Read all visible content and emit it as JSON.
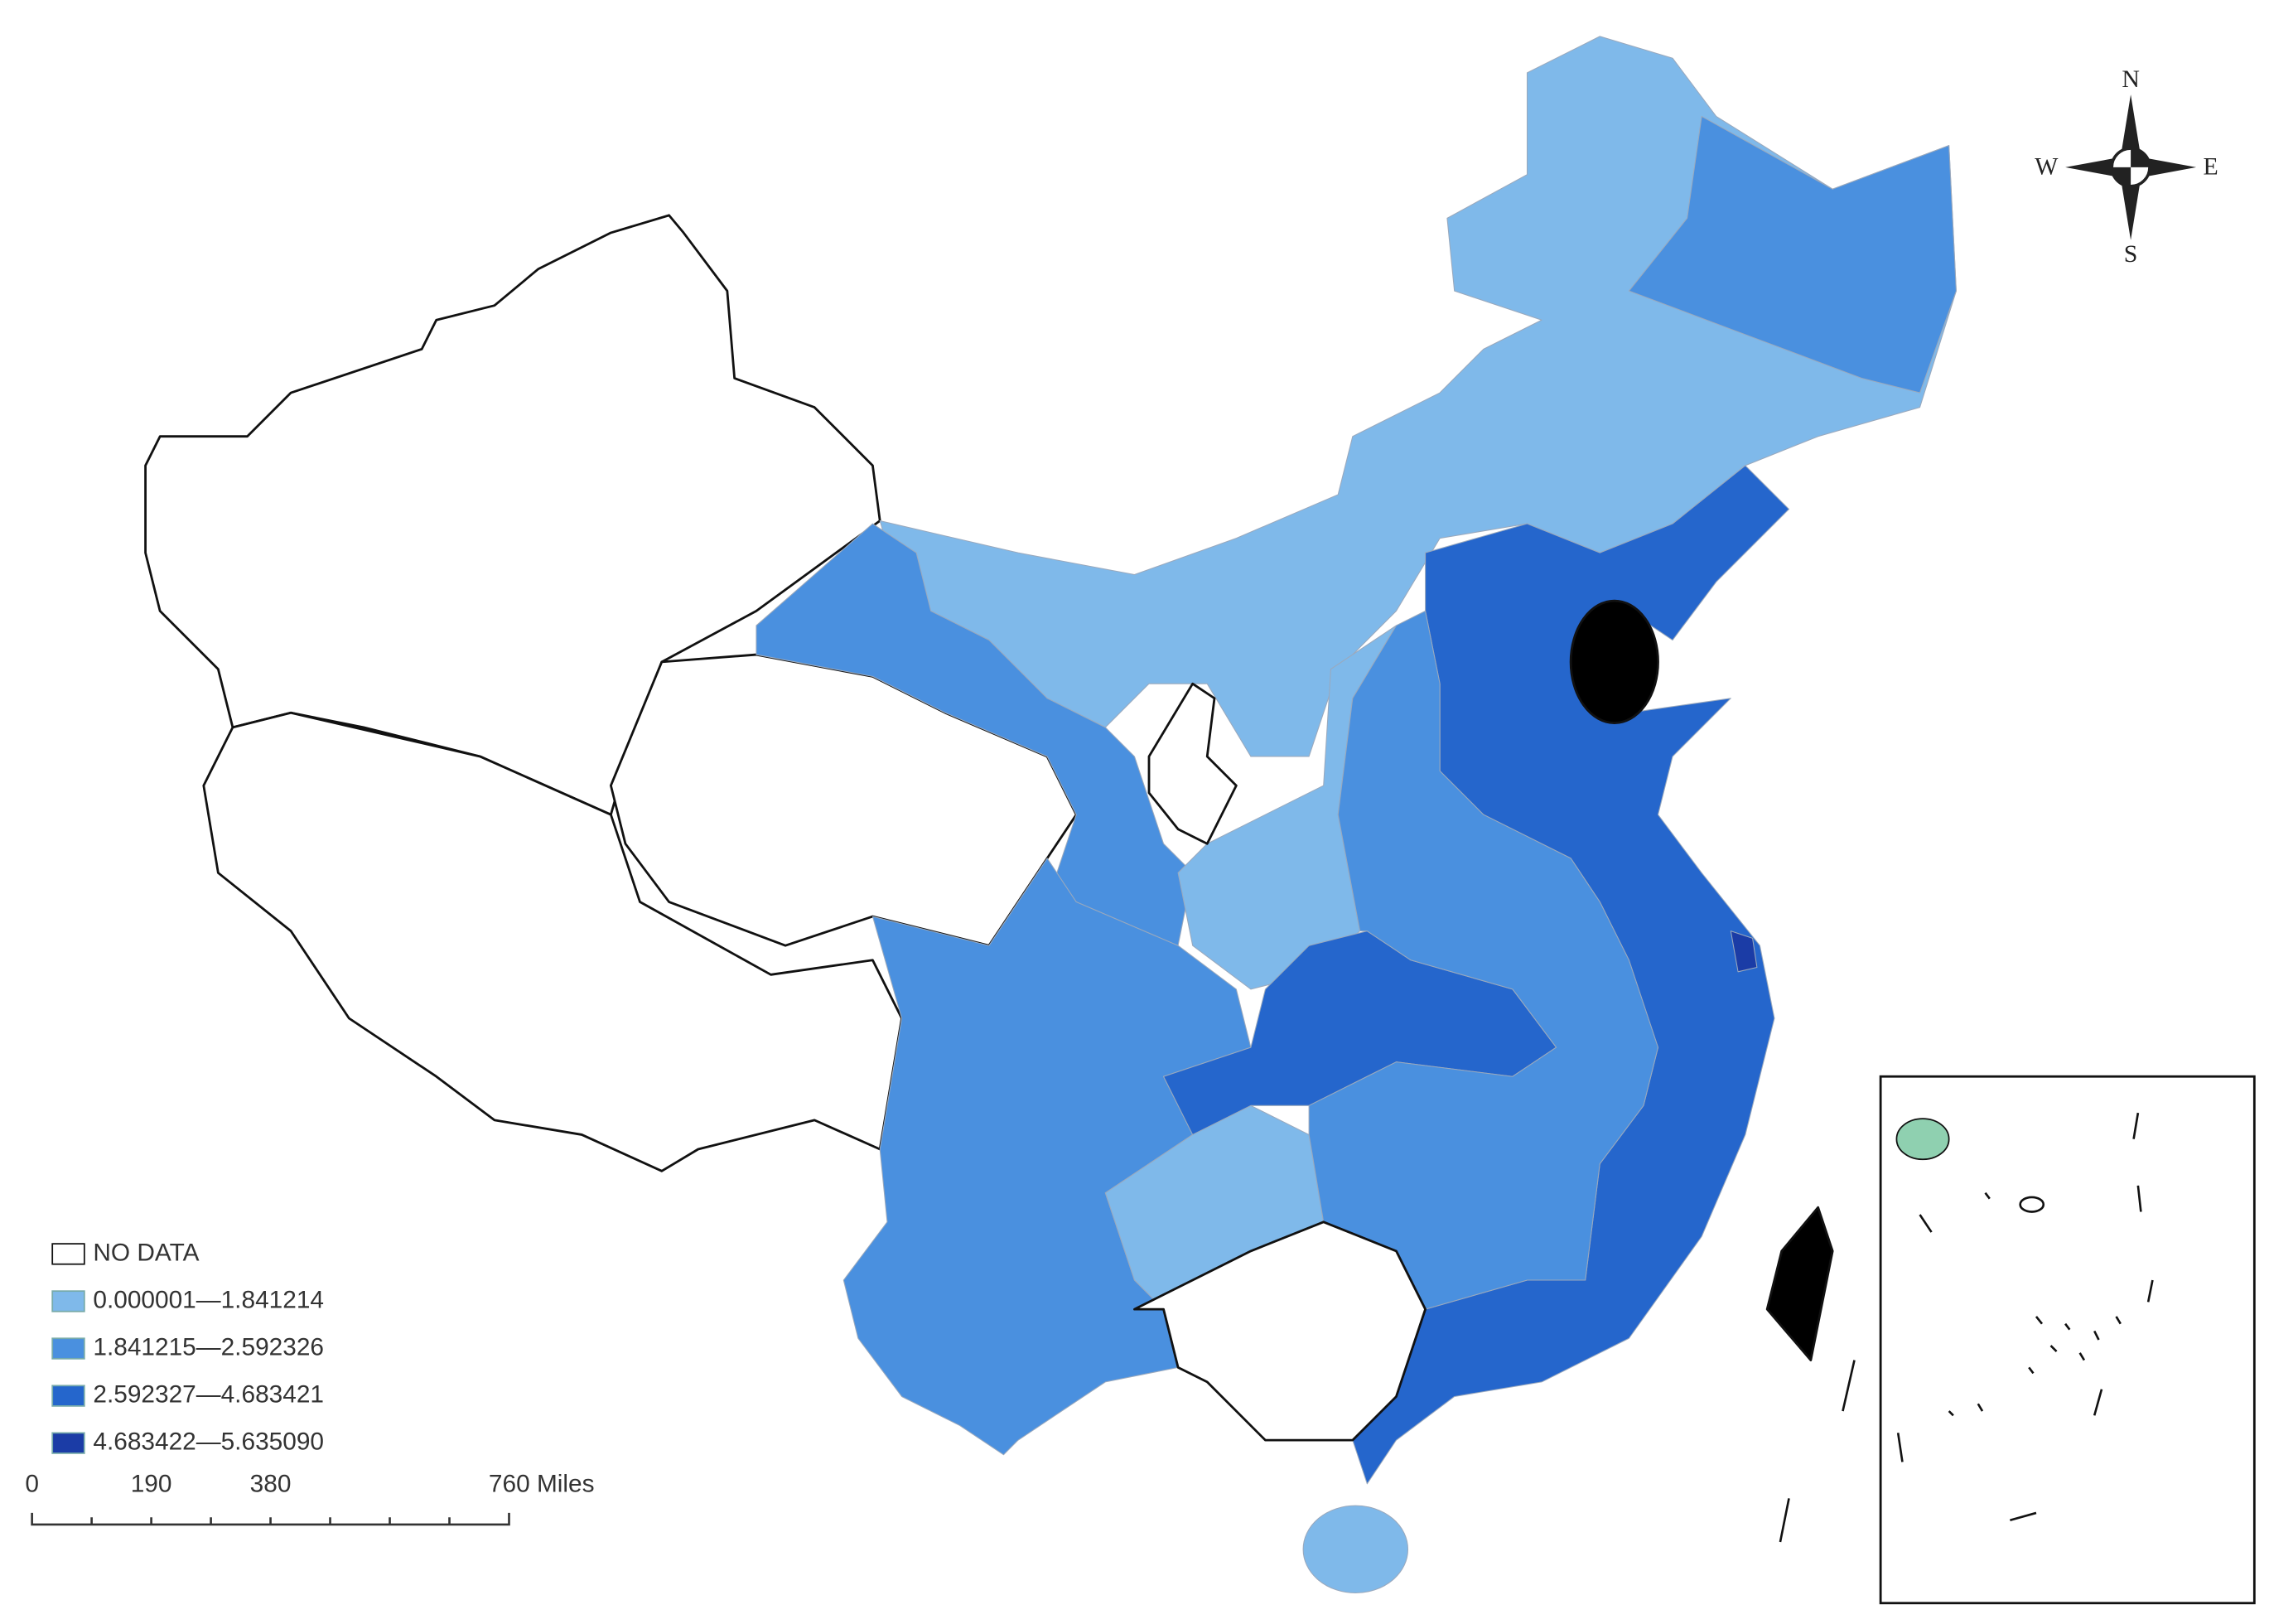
{
  "legend": {
    "items": [
      {
        "label": "NO DATA",
        "color": "#ffffff"
      },
      {
        "label": "0.000001—1.841214",
        "color": "#7fb9ea"
      },
      {
        "label": "1.841215—2.592326",
        "color": "#4a90df"
      },
      {
        "label": "2.592327—4.683421",
        "color": "#2566cc"
      },
      {
        "label": "4.683422—5.635090",
        "color": "#1b3ca6"
      }
    ]
  },
  "scale_bar": {
    "labels": [
      "0",
      "190",
      "380",
      "760 Miles"
    ]
  },
  "compass": {
    "north": "N",
    "east": "E",
    "south": "S",
    "west": "W"
  }
}
